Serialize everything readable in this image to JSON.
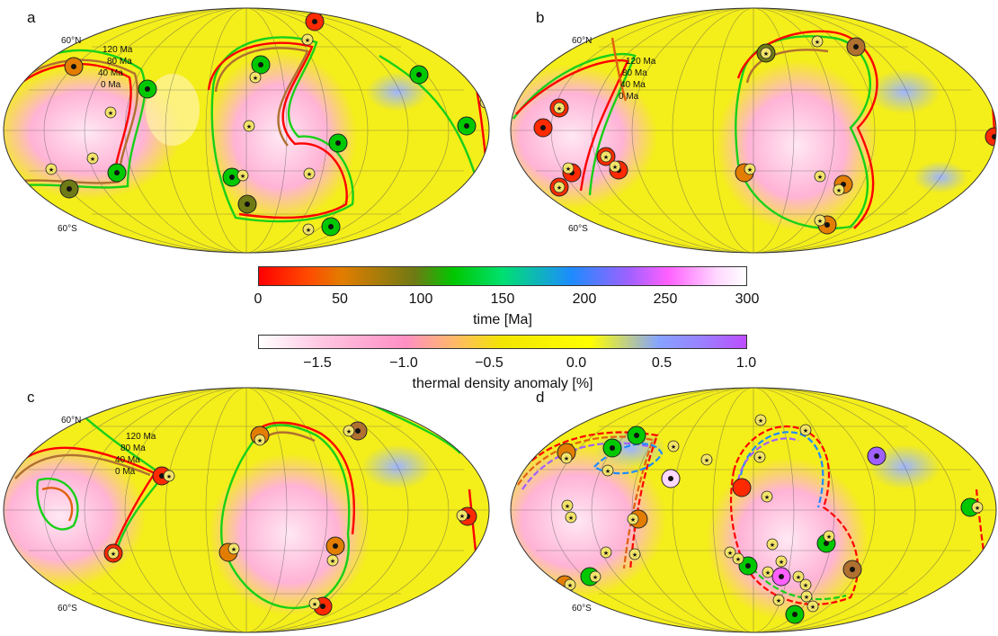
{
  "panels": [
    {
      "id": "a",
      "letter": "a",
      "lat_north": "60°N",
      "lat_south": "60°S",
      "age_labels": [
        "120 Ma",
        "80 Ma",
        "40 Ma",
        "0 Ma"
      ]
    },
    {
      "id": "b",
      "letter": "b",
      "lat_north": "60°N",
      "lat_south": "60°S",
      "age_labels": [
        "120 Ma",
        "80 Ma",
        "40 Ma",
        "0 Ma"
      ]
    },
    {
      "id": "c",
      "letter": "c",
      "lat_north": "60°N",
      "lat_south": "60°S",
      "age_labels": [
        "120 Ma",
        "80 Ma",
        "40 Ma",
        "0 Ma"
      ]
    },
    {
      "id": "d",
      "letter": "d",
      "lat_north": "",
      "lat_south": "60°S",
      "age_labels": []
    }
  ],
  "colorbar_time": {
    "title": "time [Ma]",
    "ticks": [
      "0",
      "50",
      "100",
      "150",
      "200",
      "250",
      "300"
    ],
    "min": 0,
    "max": 300
  },
  "colorbar_density": {
    "title": "thermal density anomaly [%]",
    "ticks": [
      "−1.5",
      "−1.0",
      "−0.5",
      "0.0",
      "0.5",
      "1.0"
    ],
    "min": -1.8,
    "max": 1.0
  },
  "colors": {
    "present": "#ff0000",
    "age_40": "#e06010",
    "age_80": "#b07030",
    "age_120": "#18d018",
    "background_field": "#f4ee1a",
    "hot_anomaly": "#ffb3d6",
    "cold_anomaly": "#9fb6ff"
  }
}
